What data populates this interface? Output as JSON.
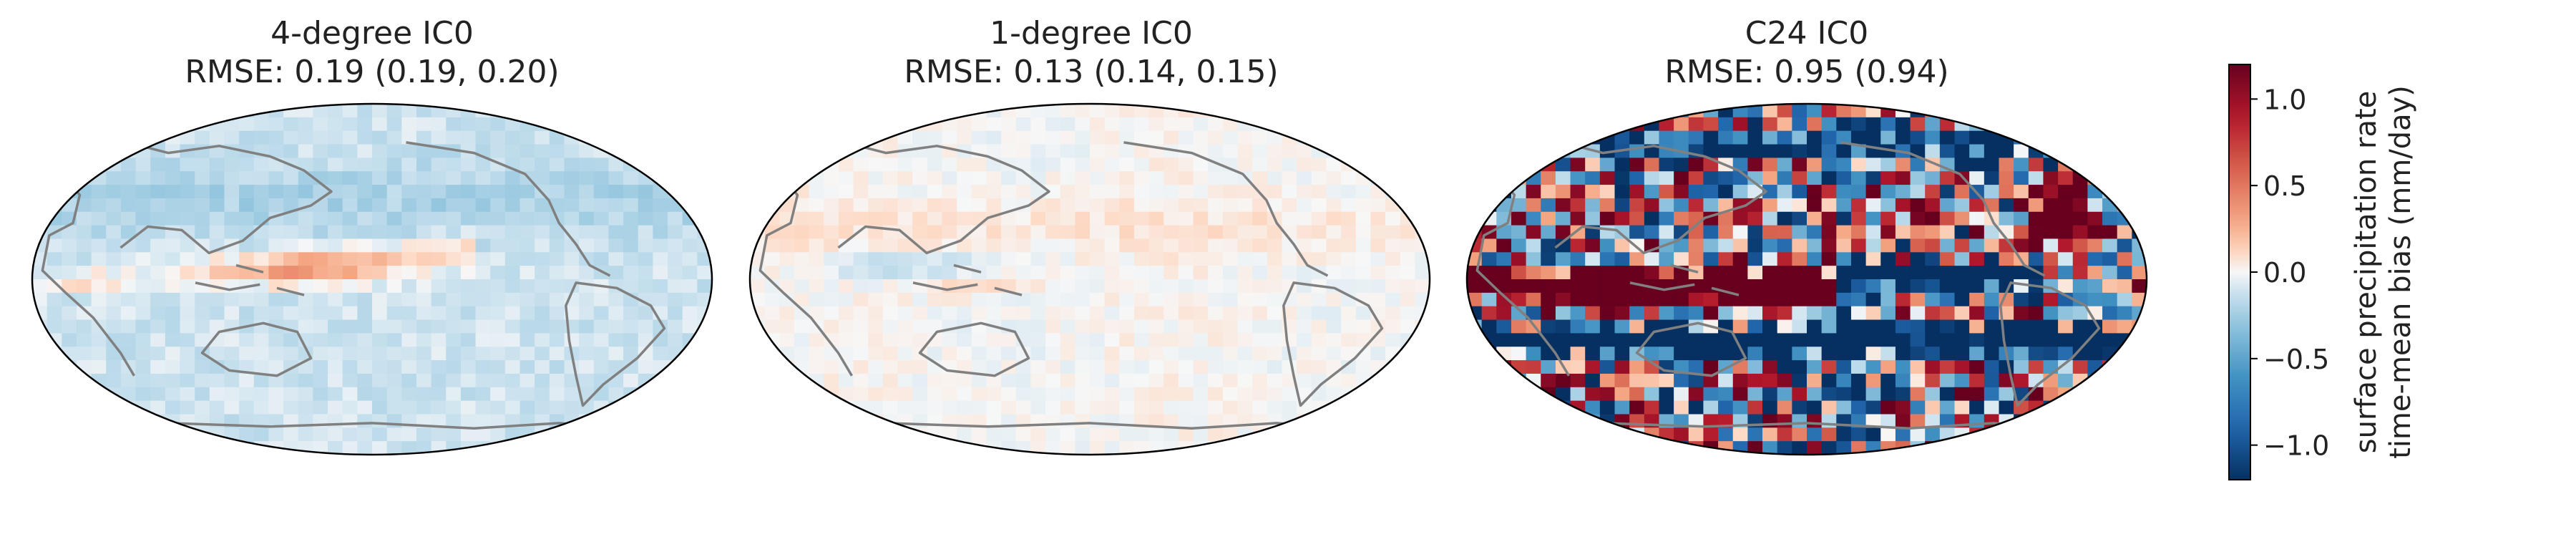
{
  "chart_data": {
    "type": "heatmap",
    "panels": [
      {
        "title": "4-degree IC0",
        "subtitle": "RMSE: 0.19 (0.19, 0.20)",
        "amp": 0.28,
        "pattern": "warm-pacific"
      },
      {
        "title": "1-degree IC0",
        "subtitle": "RMSE: 0.13 (0.14, 0.15)",
        "amp": 0.16,
        "pattern": "weak-mixed"
      },
      {
        "title": "C24 IC0",
        "subtitle": "RMSE: 0.95 (0.94)",
        "amp": 1.25,
        "pattern": "strong-dipole"
      }
    ],
    "colorbar": {
      "label_line1": "surface precipitation rate",
      "label_line2": "time-mean bias (mm/day)",
      "vmin": -1.2,
      "vmax": 1.2,
      "ticks": [
        1.0,
        0.5,
        0.0,
        -0.5,
        -1.0
      ],
      "tick_labels": [
        "1.0",
        "0.5",
        "0.0",
        "−0.5",
        "−1.0"
      ],
      "colormap": "RdBu_r"
    },
    "projection": "Robinson (Pacific-centered)",
    "colors": {
      "coastline": "#808080",
      "outline": "#000000",
      "low": "#053061",
      "mid": "#f7f7f7",
      "high": "#67001f"
    }
  }
}
